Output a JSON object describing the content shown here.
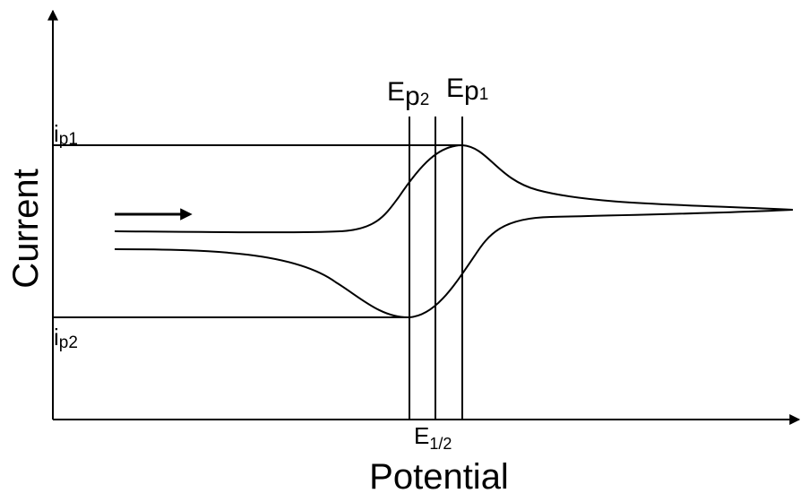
{
  "diagram": {
    "axes": {
      "x_label": "Potential",
      "y_label": "Current"
    },
    "labels": {
      "ip1": {
        "main": "i",
        "sub": "p1"
      },
      "ip2": {
        "main": "i",
        "sub": "p2"
      },
      "ep2": {
        "main": "E",
        "sub": "p",
        "subsub": "2"
      },
      "ep1": {
        "main": "E",
        "sub": "p",
        "subsub": "1"
      },
      "e_half": {
        "main": "E",
        "sub": "1/2"
      }
    },
    "scan_direction_icon": "arrow-right-icon",
    "colors": {
      "stroke": "#000000",
      "background": "#ffffff"
    }
  }
}
